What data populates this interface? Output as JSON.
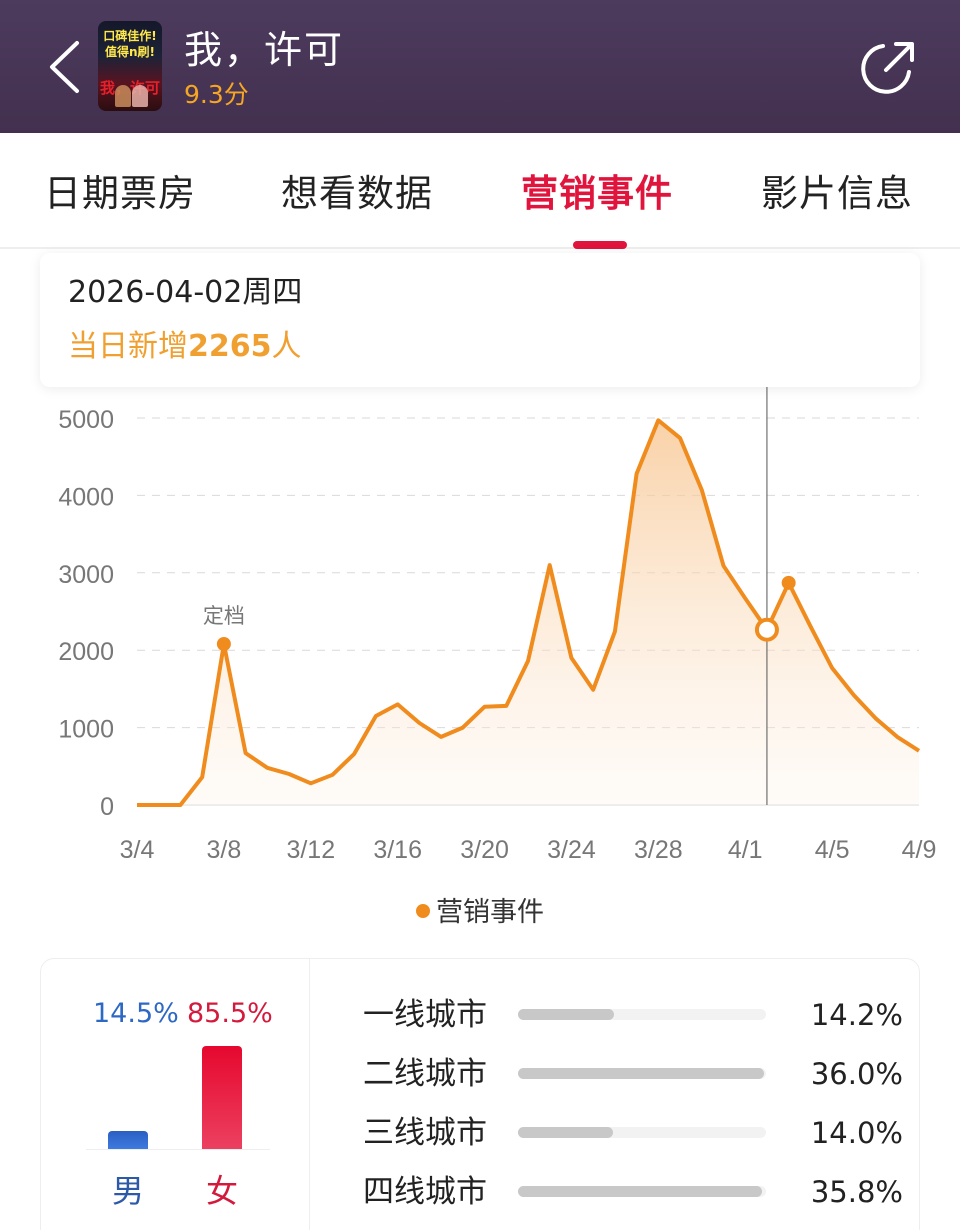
{
  "header": {
    "title": "我，许可",
    "score": "9.3分",
    "poster": {
      "line1": "口碑佳作!",
      "line2": "值得n刷!",
      "title": "我，许可"
    },
    "back_icon": "chevron-left-icon",
    "share_icon": "share-icon"
  },
  "tabs": [
    {
      "label": "日期票房",
      "active": false
    },
    {
      "label": "想看数据",
      "active": false
    },
    {
      "label": "营销事件",
      "active": true
    },
    {
      "label": "影片信息",
      "active": false
    }
  ],
  "tooltip": {
    "date": "2026-04-02周四",
    "prefix": "当日新增",
    "value": "2265",
    "suffix": "人"
  },
  "colors": {
    "accent": "#e0143c",
    "line": "#f08c1e",
    "male": "#2d68c4",
    "female": "#e0143c",
    "topbar": "#4a3859"
  },
  "chart_data": {
    "type": "area",
    "title": "",
    "xlabel": "",
    "ylabel": "",
    "ylim": [
      0,
      5000
    ],
    "yticks": [
      0,
      1000,
      2000,
      3000,
      4000,
      5000
    ],
    "xtick_labels": [
      "3/4",
      "3/8",
      "3/12",
      "3/16",
      "3/20",
      "3/24",
      "3/28",
      "4/1",
      "4/5",
      "4/9"
    ],
    "grid": true,
    "legend_position": "bottom",
    "x": [
      "3/4",
      "3/5",
      "3/6",
      "3/7",
      "3/8",
      "3/9",
      "3/10",
      "3/11",
      "3/12",
      "3/13",
      "3/14",
      "3/15",
      "3/16",
      "3/17",
      "3/18",
      "3/19",
      "3/20",
      "3/21",
      "3/22",
      "3/23",
      "3/24",
      "3/25",
      "3/26",
      "3/27",
      "3/28",
      "3/29",
      "3/30",
      "3/31",
      "4/1",
      "4/2",
      "4/3",
      "4/4",
      "4/5",
      "4/6",
      "4/7",
      "4/8",
      "4/9"
    ],
    "series": [
      {
        "name": "营销事件",
        "values": [
          0,
          0,
          0,
          360,
          2080,
          670,
          480,
          400,
          280,
          390,
          660,
          1150,
          1300,
          1060,
          880,
          1000,
          1270,
          1280,
          1860,
          3100,
          1900,
          1490,
          2240,
          4280,
          4970,
          4740,
          4070,
          3090,
          2670,
          2265,
          2870,
          2310,
          1770,
          1420,
          1120,
          880,
          700
        ]
      }
    ],
    "annotations": [
      {
        "x": "3/8",
        "label": "定档",
        "marker": "filled"
      },
      {
        "x": "4/3",
        "label": "",
        "marker": "filled"
      }
    ],
    "selected": {
      "x": "4/2",
      "value": 2265
    }
  },
  "legend": {
    "label": "营销事件"
  },
  "gender": {
    "male": {
      "label": "男",
      "pct": "14.5%"
    },
    "female": {
      "label": "女",
      "pct": "85.5%"
    }
  },
  "cities": [
    {
      "label": "一线城市",
      "pct": "14.2%",
      "fill": 39
    },
    {
      "label": "二线城市",
      "pct": "36.0%",
      "fill": 99
    },
    {
      "label": "三线城市",
      "pct": "14.0%",
      "fill": 38
    },
    {
      "label": "四线城市",
      "pct": "35.8%",
      "fill": 98
    }
  ]
}
